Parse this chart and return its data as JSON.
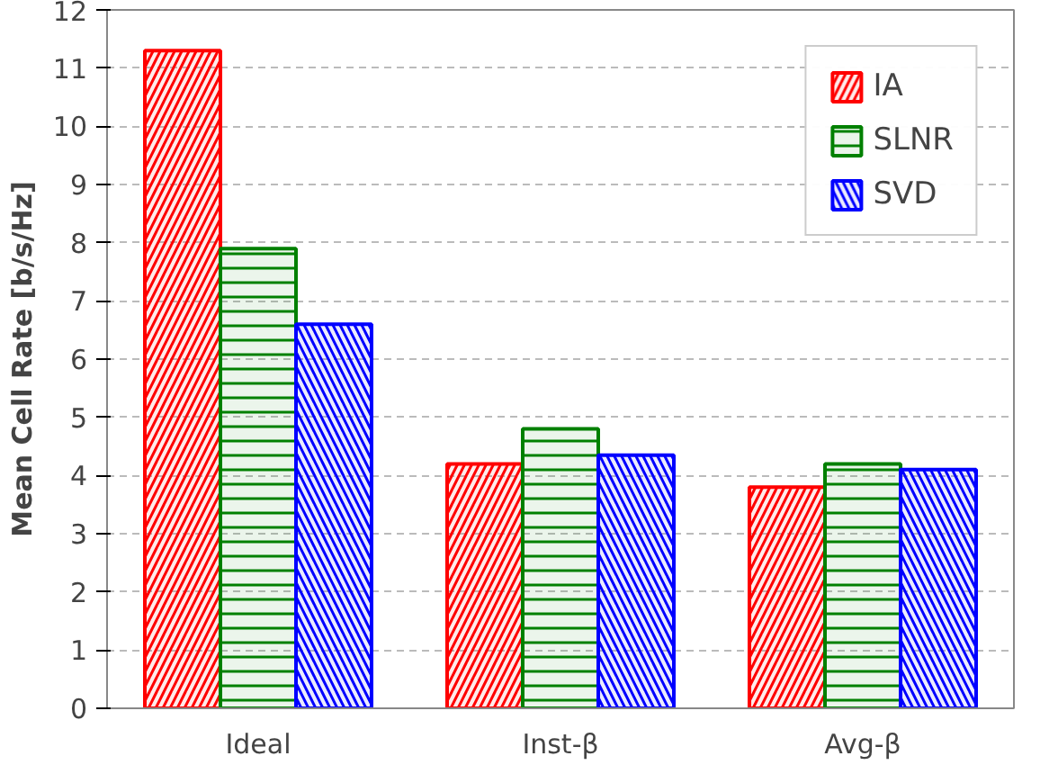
{
  "chart_data": {
    "type": "bar",
    "ylabel": "Mean Cell Rate [b/s/Hz]",
    "categories": [
      "Ideal",
      "Inst-β",
      "Avg-β"
    ],
    "series": [
      {
        "name": "IA",
        "color": "#ff0000",
        "values": [
          11.3,
          4.2,
          3.8
        ]
      },
      {
        "name": "SLNR",
        "color": "#008000",
        "values": [
          7.9,
          4.8,
          4.2
        ]
      },
      {
        "name": "SVD",
        "color": "#0000ff",
        "values": [
          6.6,
          4.35,
          4.1
        ]
      }
    ],
    "ylim": [
      0,
      12
    ],
    "yticks": [
      0,
      1,
      2,
      3,
      4,
      5,
      6,
      7,
      8,
      9,
      10,
      11,
      12
    ],
    "grid": "y",
    "legend": "top right"
  }
}
